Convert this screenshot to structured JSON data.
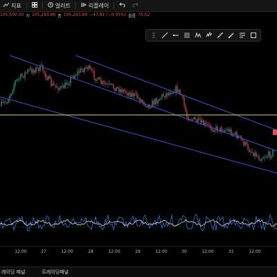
{
  "toolbar": {
    "items": [
      {
        "icon": "indicators-icon",
        "label": "지표"
      },
      {
        "icon": "layout-grid-icon",
        "label": ""
      },
      {
        "icon": "alert-clock-icon",
        "label": "얼러트"
      },
      {
        "icon": "replay-icon",
        "label": "리플레이"
      },
      {
        "icon": "undo-icon",
        "label": ""
      }
    ]
  },
  "ohlc": {
    "open": "105,500.00",
    "high_label": "저",
    "high": "105,283.80",
    "close_label": "종",
    "close": "105,283.80",
    "change": "−47.81 (−0.05%)",
    "vol_label": "볼륨",
    "volume": "70.52"
  },
  "drawing_toolbar": {
    "tools": [
      "trend-line-icon",
      "horizontal-ray-icon",
      "fib-levels-icon",
      "pattern-icon",
      "elliott-wave-icon",
      "measure-icon",
      "brush-icon",
      "text-note-icon",
      "rectangle-icon"
    ]
  },
  "time_axis": {
    "labels": [
      "12:00",
      "27",
      "12:00",
      "28",
      "12:00",
      "29",
      "12:00",
      "30",
      "12:00",
      "31",
      "12:00"
    ]
  },
  "bottom_panel": {
    "tabs": [
      "레이딩 패널",
      "트레이딩패널"
    ]
  },
  "colors": {
    "up": "#26a69a",
    "down": "#e84855",
    "channel": "#3b50d9",
    "horizontal_line": "#e6d33a",
    "oscillator": "#3b6fd9",
    "signal": "#ffffff"
  }
}
